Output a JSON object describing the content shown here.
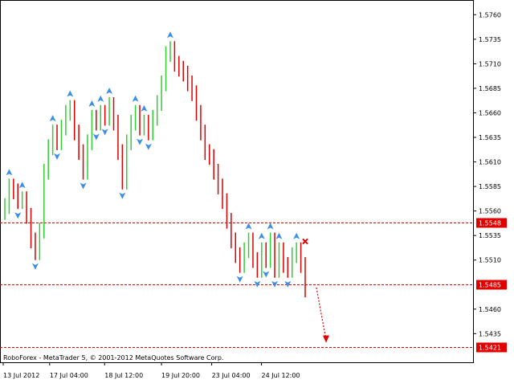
{
  "chart_data": {
    "type": "line",
    "chart_subtype": "candlestick",
    "instrument_note": "",
    "copyright": "RoboForex - MetaTrader 5, © 2001-2012 MetaQuotes Software Corp.",
    "ylim": [
      1.5405,
      1.5775
    ],
    "y_ticks": [
      "1.5760",
      "1.5735",
      "1.5710",
      "1.5685",
      "1.5660",
      "1.5635",
      "1.5610",
      "1.5585",
      "1.5560",
      "1.5535",
      "1.5510",
      "1.5460",
      "1.5435"
    ],
    "x_tick_labels": [
      "13 Jul 2012",
      "17 Jul 04:00",
      "18 Jul 12:00",
      "19 Jul 20:00",
      "23 Jul 04:00",
      "24 Jul 12:00"
    ],
    "grid": false,
    "colors": {
      "bull": "#32cd32",
      "bear": "#dc0000",
      "marker": "#3a8ee6",
      "level": "#e00000",
      "frame": "#000000"
    },
    "levels": [
      {
        "value": 1.5548,
        "label": "1.5548"
      },
      {
        "value": 1.5485,
        "label": "1.5485"
      },
      {
        "value": 1.5421,
        "label": "1.5421"
      }
    ],
    "forecast": {
      "from": 1.5482,
      "to": 1.5425
    },
    "cross_marker": {
      "value": 1.5529
    },
    "series": [
      {
        "values": [
          1.5565,
          1.5585,
          1.558,
          1.557,
          1.5572,
          1.5555,
          1.553,
          1.5518,
          1.554,
          1.56,
          1.5625,
          1.564,
          1.563,
          1.5645,
          1.566,
          1.5665,
          1.564,
          1.562,
          1.56,
          1.563,
          1.5655,
          1.565,
          1.566,
          1.5655,
          1.5668,
          1.565,
          1.562,
          1.559,
          1.563,
          1.565,
          1.566,
          1.5645,
          1.565,
          1.564,
          1.5655,
          1.567,
          1.569,
          1.572,
          1.5725,
          1.571,
          1.5705,
          1.57,
          1.569,
          1.568,
          1.566,
          1.564,
          1.562,
          1.5615,
          1.56,
          1.5585,
          1.557,
          1.555,
          1.553,
          1.5515,
          1.5505,
          1.552,
          1.553,
          1.551,
          1.55,
          1.552,
          1.551,
          1.553,
          1.55,
          1.552,
          1.5505,
          1.55,
          1.5515,
          1.552,
          1.5505,
          1.548
        ]
      }
    ]
  }
}
